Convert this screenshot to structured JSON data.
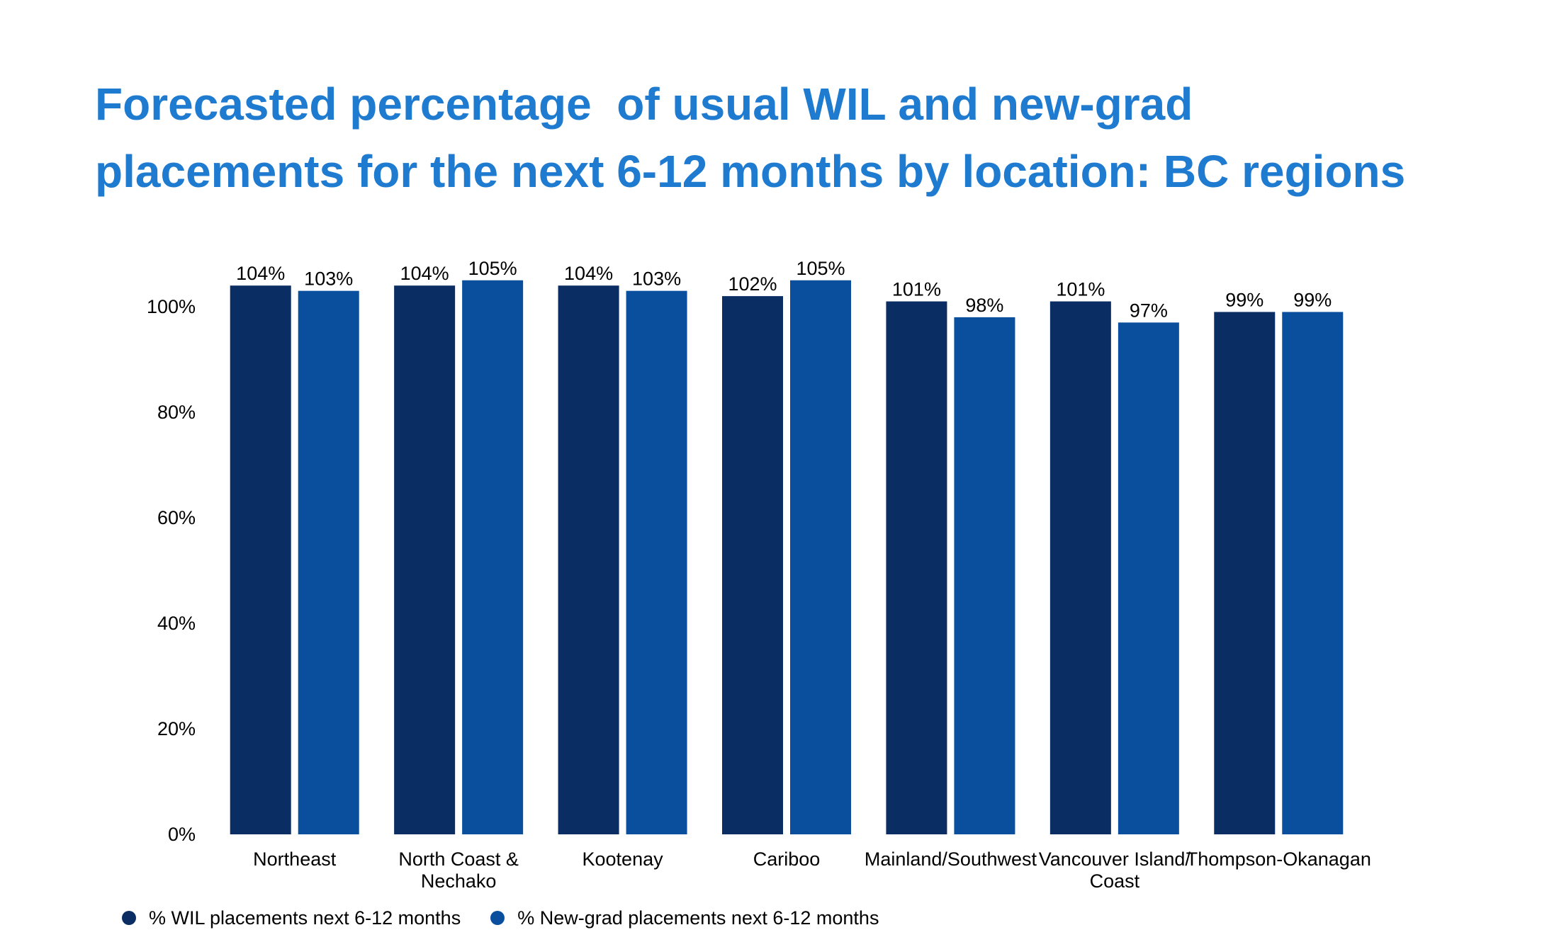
{
  "title": {
    "line1": "Forecasted percentage  of usual WIL and new-grad",
    "line2": "placements for the next 6-12 months by location: BC regions"
  },
  "colors": {
    "wil": "#0a2d64",
    "newgrad": "#0a4f9e",
    "title": "#1f7bd0"
  },
  "chart_data": {
    "type": "bar",
    "title": "Forecasted percentage  of usual WIL and new-grad placements for the next 6-12 months by location: BC regions",
    "categories": [
      [
        "Northeast"
      ],
      [
        "North Coast &",
        "Nechako"
      ],
      [
        "Kootenay"
      ],
      [
        "Cariboo"
      ],
      [
        "Mainland/Southwest"
      ],
      [
        "Vancouver Island/",
        "Coast"
      ],
      [
        "Thompson-Okanagan"
      ]
    ],
    "series": [
      {
        "name": "% WIL placements next 6-12 months",
        "values": [
          104,
          104,
          104,
          102,
          101,
          101,
          99
        ],
        "labels": [
          "104%",
          "104%",
          "104%",
          "102%",
          "101%",
          "101%",
          "99%"
        ],
        "color": "#0a2d64"
      },
      {
        "name": "% New-grad placements next 6-12 months",
        "values": [
          103,
          105,
          103,
          105,
          98,
          97,
          99
        ],
        "labels": [
          "103%",
          "105%",
          "103%",
          "105%",
          "98%",
          "97%",
          "99%"
        ],
        "color": "#0a4f9e"
      }
    ],
    "yticks": [
      "0%",
      "20%",
      "40%",
      "60%",
      "80%",
      "100%"
    ],
    "ytick_values": [
      0,
      20,
      40,
      60,
      80,
      100
    ],
    "ylim": [
      0,
      110
    ],
    "grid": false,
    "legend_position": "bottom-left",
    "xlabel": "",
    "ylabel": ""
  }
}
